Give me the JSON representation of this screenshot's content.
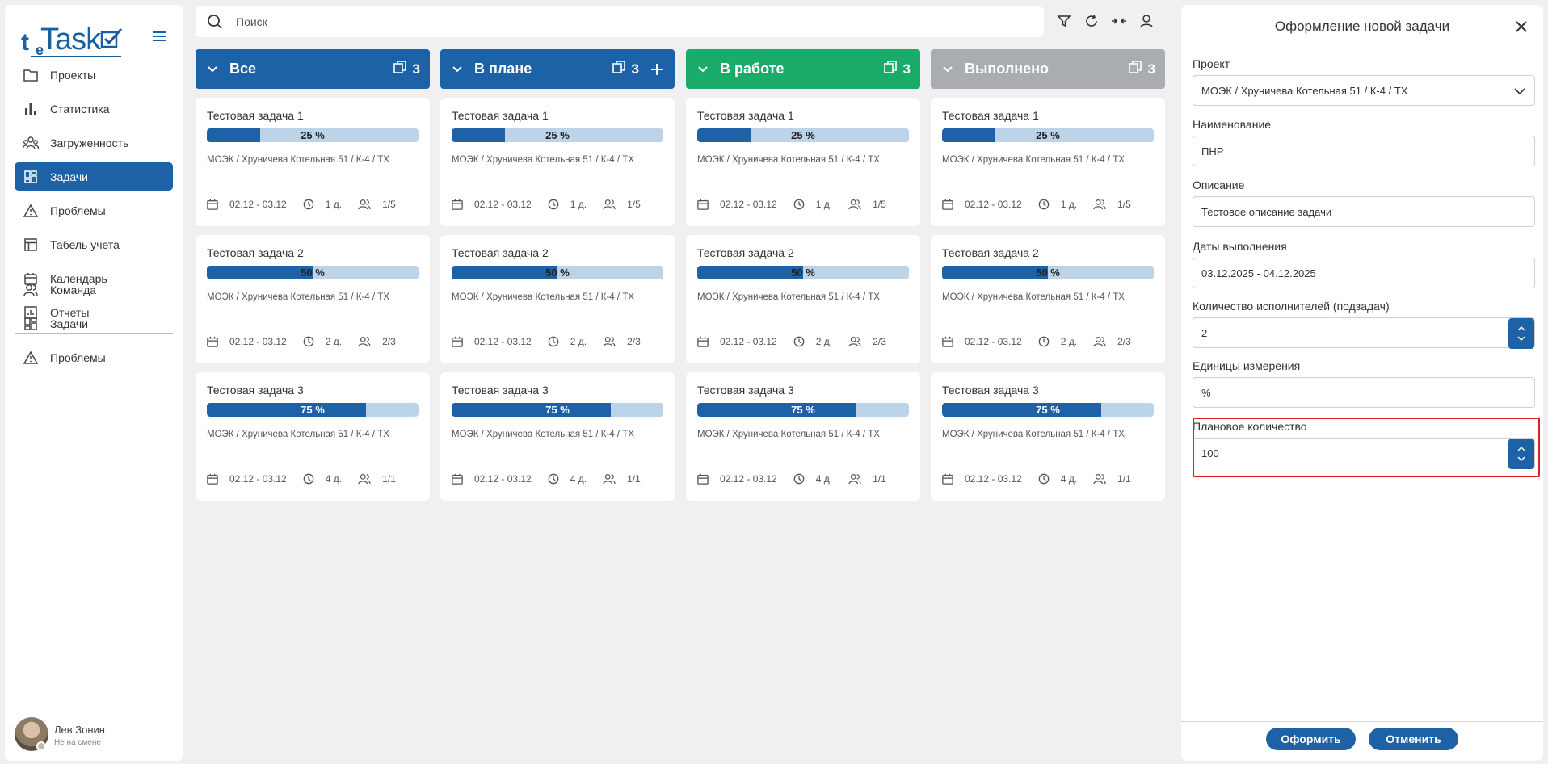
{
  "app": {
    "logo_t": "t",
    "logo_e": "e",
    "logo_task": "Task"
  },
  "sidebar": {
    "items": [
      {
        "label": "Проекты",
        "icon": "folder-icon",
        "active": false
      },
      {
        "label": "Статистика",
        "icon": "bar-chart-icon",
        "active": false
      },
      {
        "label": "Загруженность",
        "icon": "group-icon",
        "active": false
      },
      {
        "label": "Задачи",
        "icon": "dashboard-icon",
        "active": true
      },
      {
        "label": "Проблемы",
        "icon": "warning-icon",
        "active": false
      },
      {
        "label": "Табель учета",
        "icon": "table-icon",
        "active": false
      },
      {
        "label": "Календарь",
        "icon": "calendar-icon",
        "active": false
      },
      {
        "label": "Отчеты",
        "icon": "report-icon",
        "active": false
      }
    ],
    "team_items": [
      {
        "label": "Команда",
        "icon": "people-icon"
      },
      {
        "label": "Задачи",
        "icon": "dashboard-icon"
      },
      {
        "label": "Проблемы",
        "icon": "warning-icon"
      }
    ],
    "user": {
      "name": "Лев Зонин",
      "status": "Не на смене"
    }
  },
  "search": {
    "placeholder": "Поиск"
  },
  "colors": {
    "primary": "#1d61a6",
    "success": "#1aaa6a",
    "done": "#a9adb2",
    "bar_bg": "#bcd3e8",
    "highlight": "#e11d2a"
  },
  "columns": [
    {
      "title": "Все",
      "count": "3",
      "color": "#1d61a6",
      "plus": false
    },
    {
      "title": "В плане",
      "count": "3",
      "color": "#1d61a6",
      "plus": true
    },
    {
      "title": "В работе",
      "count": "3",
      "color": "#1aaa6a",
      "plus": false
    },
    {
      "title": "Выполнено",
      "count": "3",
      "color": "#a9adb2",
      "plus": false
    }
  ],
  "tasks": [
    {
      "title": "Тестовая задача 1",
      "progress": 25,
      "progress_label": "25 %",
      "path": "МОЭК / Хруничева Котельная 51 / К-4 / ТХ",
      "dates": "02.12 - 03.12",
      "duration": "1 д.",
      "assignees": "1/5"
    },
    {
      "title": "Тестовая задача 2",
      "progress": 50,
      "progress_label": "50 %",
      "path": "МОЭК / Хруничева Котельная 51 / К-4 / ТХ",
      "dates": "02.12 - 03.12",
      "duration": "2 д.",
      "assignees": "2/3"
    },
    {
      "title": "Тестовая задача 3",
      "progress": 75,
      "progress_label": "75 %",
      "path": "МОЭК / Хруничева Котельная 51 / К-4 / ТХ",
      "dates": "02.12 - 03.12",
      "duration": "4 д.",
      "assignees": "1/1"
    }
  ],
  "panel": {
    "title": "Оформление новой задачи",
    "project_label": "Проект",
    "project_value": "МОЭК / Хруничева Котельная 51 / К-4 / ТХ",
    "name_label": "Наименование",
    "name_value": "ПНР",
    "desc_label": "Описание",
    "desc_value": "Тестовое описание задачи",
    "dates_label": "Даты выполнения",
    "dates_value": "03.12.2025 - 04.12.2025",
    "executors_label": "Количество исполнителей (подзадач)",
    "executors_value": "2",
    "units_label": "Единицы измерения",
    "units_value": "%",
    "planned_label": "Плановое количество",
    "planned_value": "100",
    "submit_label": "Оформить",
    "cancel_label": "Отменить"
  }
}
